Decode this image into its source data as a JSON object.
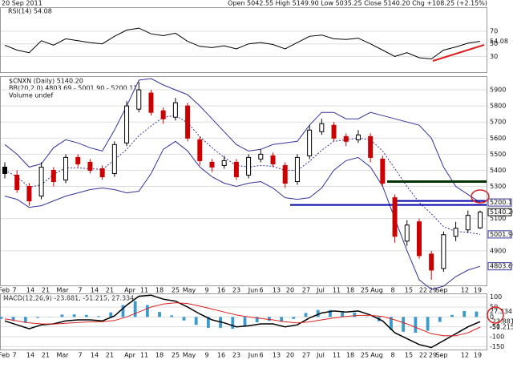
{
  "chart_data": {
    "type": "candlestick",
    "date": "20 Sep 2011",
    "quote": "Open 5042.55 High 5149.90 Low 5035.25 Close 5140.20 Chg +108.25 (+2.15%)",
    "title": "$CNXN (Daily) 5140.20",
    "bb_legend": "BB(20,2.0) 4803.69 - 5001.90 - 5200.11",
    "volume_legend": "Volume undef",
    "rsi_legend": "RSI(14) 54.08",
    "macd_legend": "MACD(12,26,9) -23.881, -51.215, 27.334",
    "x_labels": [
      "Feb",
      "7",
      "14",
      "21",
      "Mar",
      "7",
      "14",
      "21",
      "Apr",
      "11",
      "18",
      "25",
      "May",
      "9",
      "16",
      "23",
      "Jun",
      "6",
      "13",
      "20",
      "27",
      "Jul",
      "11",
      "18",
      "25",
      "Aug",
      "8",
      "15",
      "22",
      "29",
      "Sep",
      "12",
      "19"
    ],
    "ylim": [
      4685,
      5980
    ],
    "yticks": [
      5900,
      5800,
      5700,
      5600,
      5500,
      5400,
      5300,
      5100,
      4900
    ],
    "open": [
      5420,
      5370,
      5300,
      5240,
      5400,
      5340,
      5480,
      5450,
      5410,
      5380,
      5570,
      5780,
      5880,
      5770,
      5730,
      5800,
      5590,
      5450,
      5430,
      5450,
      5370,
      5470,
      5490,
      5430,
      5330,
      5490,
      5640,
      5680,
      5610,
      5590,
      5610,
      5470,
      5230,
      4960,
      5080,
      4880,
      4790,
      4990,
      5030,
      5042.55
    ],
    "high": [
      5450,
      5400,
      5320,
      5450,
      5420,
      5500,
      5500,
      5470,
      5430,
      5580,
      5830,
      5950,
      5900,
      5790,
      5850,
      5820,
      5610,
      5470,
      5490,
      5470,
      5500,
      5530,
      5510,
      5450,
      5500,
      5680,
      5720,
      5700,
      5630,
      5650,
      5630,
      5490,
      5250,
      5090,
      5100,
      4900,
      5020,
      5080,
      5150,
      5149.9
    ],
    "low": [
      5350,
      5260,
      5180,
      5220,
      5300,
      5320,
      5420,
      5380,
      5340,
      5360,
      5550,
      5760,
      5740,
      5690,
      5710,
      5580,
      5430,
      5390,
      5410,
      5340,
      5350,
      5450,
      5420,
      5290,
      5310,
      5470,
      5620,
      5580,
      5550,
      5570,
      5450,
      5300,
      4950,
      4930,
      4850,
      4720,
      4770,
      4960,
      5010,
      5035.25
    ],
    "close": [
      5380,
      5280,
      5210,
      5420,
      5330,
      5480,
      5440,
      5400,
      5360,
      5560,
      5800,
      5900,
      5760,
      5720,
      5820,
      5600,
      5460,
      5420,
      5460,
      5360,
      5480,
      5500,
      5440,
      5320,
      5480,
      5650,
      5690,
      5600,
      5580,
      5620,
      5480,
      5320,
      4990,
      5060,
      4870,
      4780,
      5000,
      5040,
      5120,
      5140.2
    ],
    "bb_color": "#33339a",
    "bb_upper": [
      5560,
      5500,
      5420,
      5440,
      5540,
      5590,
      5570,
      5540,
      5520,
      5650,
      5800,
      5960,
      5970,
      5930,
      5900,
      5870,
      5800,
      5720,
      5640,
      5560,
      5520,
      5530,
      5560,
      5570,
      5580,
      5680,
      5760,
      5760,
      5720,
      5720,
      5760,
      5740,
      5720,
      5700,
      5680,
      5600,
      5420,
      5300,
      5250,
      5200.11
    ],
    "bb_middle": [
      5400,
      5360,
      5295,
      5310,
      5375,
      5415,
      5415,
      5410,
      5405,
      5465,
      5530,
      5615,
      5675,
      5730,
      5740,
      5695,
      5610,
      5540,
      5480,
      5430,
      5420,
      5430,
      5425,
      5400,
      5400,
      5455,
      5525,
      5580,
      5590,
      5600,
      5590,
      5520,
      5410,
      5300,
      5200,
      5130,
      5050,
      5020,
      5015,
      5001.9
    ],
    "bb_lower": [
      5240,
      5220,
      5170,
      5180,
      5210,
      5240,
      5260,
      5280,
      5290,
      5280,
      5260,
      5270,
      5380,
      5530,
      5580,
      5520,
      5420,
      5360,
      5320,
      5300,
      5320,
      5330,
      5290,
      5230,
      5220,
      5230,
      5290,
      5400,
      5460,
      5480,
      5420,
      5300,
      5100,
      4900,
      4720,
      4660,
      4680,
      4740,
      4780,
      4803.69
    ],
    "price_tags": [
      {
        "value": 5200.11,
        "label": "5200.11"
      },
      {
        "value": 5140.2,
        "label": "5140.20"
      },
      {
        "value": 5001.9,
        "label": "5001.90"
      },
      {
        "value": 4803.69,
        "label": "4803.69"
      }
    ],
    "levels": [
      {
        "value": 5330,
        "color": "#003300"
      },
      {
        "value": 5210,
        "color": "#0000aa"
      },
      {
        "value": 5185,
        "color": "#0000aa"
      }
    ],
    "rsi_ylim": [
      5,
      107
    ],
    "rsi_yticks": [
      70,
      50,
      30
    ],
    "rsi": [
      48,
      40,
      36,
      55,
      48,
      58,
      55,
      52,
      50,
      62,
      72,
      75,
      66,
      63,
      67,
      54,
      46,
      44,
      47,
      42,
      50,
      52,
      49,
      42,
      52,
      62,
      64,
      58,
      57,
      59,
      50,
      40,
      30,
      36,
      28,
      26,
      40,
      45,
      51,
      54.08
    ],
    "rsi_tag": 54.08,
    "macd_ylim": [
      -165,
      115
    ],
    "macd_yticks": [
      100,
      50,
      0,
      -50,
      -100,
      -150
    ],
    "macd": [
      -20,
      -40,
      -60,
      -40,
      -35,
      -20,
      -15,
      -15,
      -20,
      5,
      60,
      105,
      110,
      90,
      80,
      50,
      15,
      -15,
      -30,
      -50,
      -45,
      -35,
      -35,
      -50,
      -40,
      -5,
      20,
      30,
      25,
      30,
      10,
      -20,
      -80,
      -110,
      -140,
      -155,
      -120,
      -85,
      -50,
      -23.881
    ],
    "signal": [
      -10,
      -20,
      -30,
      -35,
      -36,
      -32,
      -28,
      -25,
      -24,
      -18,
      0,
      25,
      50,
      65,
      72,
      68,
      55,
      40,
      25,
      10,
      0,
      -8,
      -15,
      -25,
      -30,
      -25,
      -15,
      -5,
      2,
      8,
      8,
      2,
      -15,
      -35,
      -60,
      -85,
      -95,
      -95,
      -80,
      -51.215
    ],
    "histogram": [
      -10,
      -20,
      -30,
      -5,
      1,
      12,
      13,
      10,
      4,
      23,
      60,
      80,
      60,
      25,
      8,
      -18,
      -40,
      -55,
      -55,
      -60,
      -45,
      -27,
      -20,
      -25,
      -10,
      20,
      35,
      35,
      23,
      22,
      2,
      -22,
      -65,
      -75,
      -80,
      -70,
      -25,
      10,
      30,
      27.334
    ],
    "macd_tags": [
      -23.881,
      -51.215,
      27.334
    ],
    "macd_color": "#000000",
    "signal_color": "#dd2222",
    "histogram_color": "#3a9ad0",
    "up_color": "#000000",
    "down_color": "#cc0000"
  }
}
